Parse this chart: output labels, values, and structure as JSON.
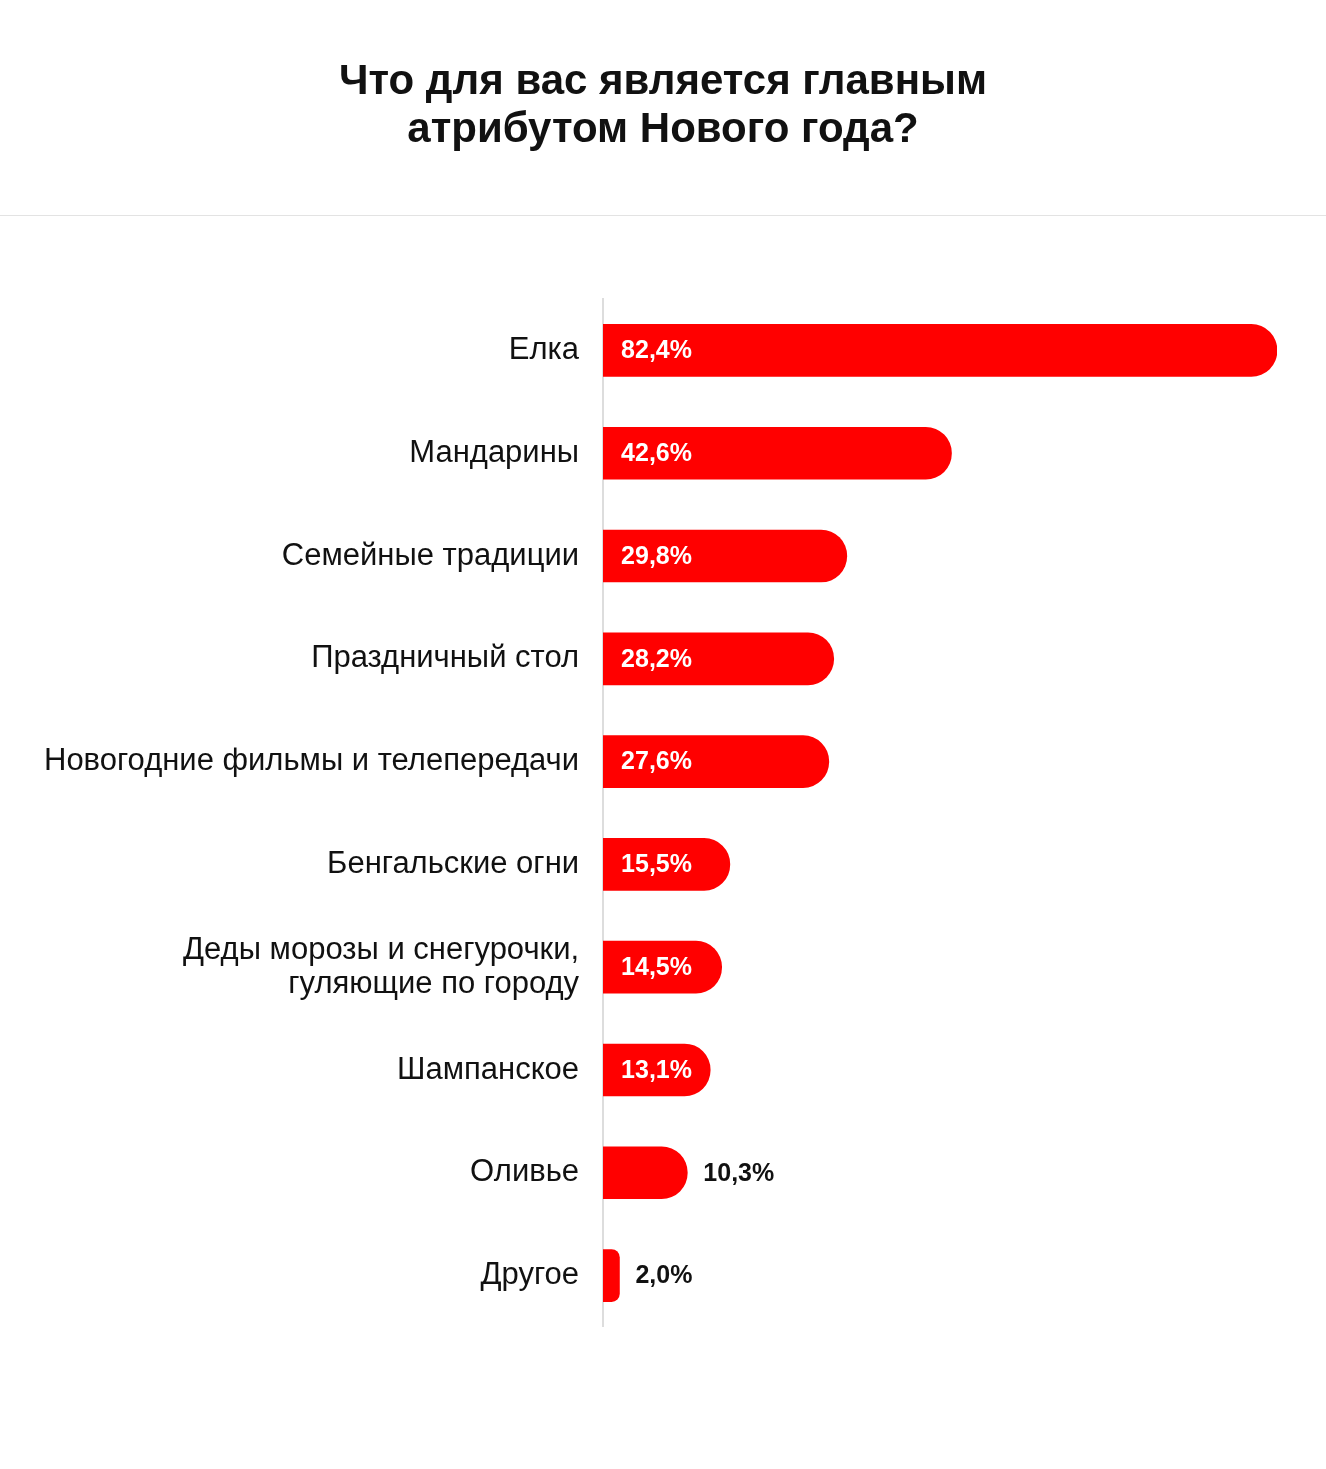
{
  "chart_data": {
    "type": "bar",
    "orientation": "horizontal",
    "title": "Что для вас является главным\nатрибутом Нового года?",
    "categories": [
      "Елка",
      "Мандарины",
      "Семейные традиции",
      "Праздничный стол",
      "Новогодние фильмы и телепередачи",
      "Бенгальские огни",
      "Деды морозы и снегурочки,\nгуляющие по городу",
      "Шампанское",
      "Оливье",
      "Другое"
    ],
    "values": [
      82.4,
      42.6,
      29.8,
      28.2,
      27.6,
      15.5,
      14.5,
      13.1,
      10.3,
      2.0
    ],
    "value_labels": [
      "82,4%",
      "42,6%",
      "29,8%",
      "28,2%",
      "27,6%",
      "15,5%",
      "14,5%",
      "13,1%",
      "10,3%",
      "2,0%"
    ],
    "color": "#ff0000",
    "grid": false,
    "legend": false,
    "tick_labels": "y"
  }
}
